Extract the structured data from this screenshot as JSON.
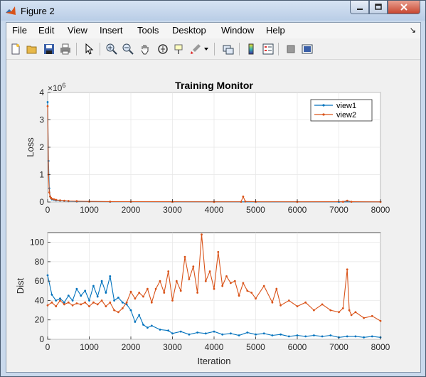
{
  "window": {
    "title": "Figure 2"
  },
  "menu": {
    "file": "File",
    "edit": "Edit",
    "view": "View",
    "insert": "Insert",
    "tools": "Tools",
    "desktop": "Desktop",
    "window": "Window",
    "help": "Help"
  },
  "toolbar": {
    "icons": [
      "new-figure-icon",
      "open-icon",
      "save-icon",
      "print-icon",
      "pointer-icon",
      "zoom-in-icon",
      "zoom-out-icon",
      "pan-icon",
      "rotate-3d-icon",
      "data-cursor-icon",
      "brush-icon",
      "link-plot-icon",
      "colorbar-icon",
      "legend-icon",
      "hide-plot-tools-icon",
      "show-plot-tools-icon"
    ]
  },
  "chart_data": [
    {
      "type": "line",
      "title": "Training Monitor",
      "ylabel": "Loss",
      "xlabel": "",
      "exponent_label": "×10",
      "exponent_power": "6",
      "xlim": [
        0,
        8000
      ],
      "ylim": [
        0,
        4
      ],
      "xticks": [
        "0",
        "1000",
        "2000",
        "3000",
        "4000",
        "5000",
        "6000",
        "7000",
        "8000"
      ],
      "yticks": [
        "0",
        "1",
        "2",
        "3",
        "4"
      ],
      "legend": {
        "placement": "top-right",
        "entries": [
          "view1",
          "view2"
        ]
      },
      "grid": true,
      "series": [
        {
          "name": "view1",
          "color": "#0072bd",
          "x": [
            0,
            20,
            40,
            60,
            80,
            100,
            150,
            200,
            300,
            400,
            500,
            700,
            1000,
            1500,
            2000,
            3000,
            4000,
            5000,
            6000,
            7000,
            8000
          ],
          "y": [
            3.65,
            1.5,
            0.5,
            0.2,
            0.14,
            0.1,
            0.08,
            0.06,
            0.05,
            0.04,
            0.03,
            0.02,
            0.015,
            0.01,
            0.01,
            0.008,
            0.007,
            0.006,
            0.005,
            0.005,
            0.004
          ]
        },
        {
          "name": "view2",
          "color": "#d95319",
          "x": [
            0,
            20,
            40,
            60,
            80,
            100,
            150,
            200,
            300,
            400,
            500,
            700,
            1000,
            1500,
            2000,
            3000,
            4000,
            4650,
            4700,
            4750,
            5000,
            6000,
            7100,
            7200,
            7300,
            8000
          ],
          "y": [
            3.5,
            1.0,
            0.35,
            0.2,
            0.15,
            0.12,
            0.1,
            0.08,
            0.06,
            0.05,
            0.04,
            0.03,
            0.02,
            0.015,
            0.012,
            0.01,
            0.008,
            0.01,
            0.2,
            0.02,
            0.01,
            0.008,
            0.01,
            0.05,
            0.01,
            0.006
          ]
        }
      ]
    },
    {
      "type": "line",
      "title": "",
      "ylabel": "Dist",
      "xlabel": "Iteration",
      "xlim": [
        0,
        8000
      ],
      "ylim": [
        0,
        110
      ],
      "xticks": [
        "0",
        "1000",
        "2000",
        "3000",
        "4000",
        "5000",
        "6000",
        "7000",
        "8000"
      ],
      "yticks": [
        "0",
        "20",
        "40",
        "60",
        "80",
        "100"
      ],
      "grid": true,
      "series": [
        {
          "name": "view1",
          "color": "#0072bd",
          "x": [
            0,
            100,
            200,
            300,
            400,
            500,
            600,
            700,
            800,
            900,
            1000,
            1100,
            1200,
            1300,
            1400,
            1500,
            1600,
            1700,
            1800,
            1900,
            2000,
            2100,
            2200,
            2300,
            2400,
            2500,
            2700,
            2900,
            3000,
            3200,
            3400,
            3600,
            3800,
            4000,
            4200,
            4400,
            4600,
            4800,
            5000,
            5200,
            5400,
            5600,
            5800,
            6000,
            6200,
            6400,
            6600,
            6800,
            7000,
            7200,
            7400,
            7600,
            7800,
            8000
          ],
          "y": [
            66,
            46,
            40,
            42,
            38,
            45,
            40,
            52,
            45,
            50,
            40,
            55,
            44,
            60,
            48,
            65,
            40,
            43,
            38,
            36,
            30,
            18,
            25,
            15,
            12,
            14,
            10,
            9,
            6,
            8,
            5,
            7,
            6,
            8,
            5,
            6,
            4,
            7,
            5,
            6,
            4,
            5,
            3,
            4,
            3,
            4,
            3,
            4,
            2,
            3,
            3,
            2,
            3,
            2
          ]
        },
        {
          "name": "view2",
          "color": "#d95319",
          "x": [
            0,
            100,
            200,
            300,
            400,
            500,
            600,
            700,
            800,
            900,
            1000,
            1100,
            1200,
            1300,
            1400,
            1500,
            1600,
            1700,
            1800,
            1900,
            2000,
            2100,
            2200,
            2300,
            2400,
            2500,
            2600,
            2700,
            2800,
            2900,
            3000,
            3100,
            3200,
            3300,
            3400,
            3500,
            3600,
            3700,
            3800,
            3900,
            4000,
            4100,
            4200,
            4300,
            4400,
            4500,
            4600,
            4700,
            4800,
            4900,
            5000,
            5200,
            5400,
            5500,
            5600,
            5800,
            6000,
            6200,
            6400,
            6600,
            6800,
            7000,
            7100,
            7200,
            7250,
            7300,
            7400,
            7600,
            7800,
            8000
          ],
          "y": [
            35,
            38,
            34,
            40,
            36,
            38,
            35,
            37,
            36,
            38,
            34,
            38,
            36,
            40,
            34,
            38,
            30,
            28,
            32,
            38,
            49,
            42,
            48,
            44,
            52,
            38,
            52,
            60,
            48,
            70,
            40,
            60,
            50,
            85,
            62,
            75,
            48,
            108,
            60,
            70,
            52,
            90,
            55,
            65,
            58,
            60,
            45,
            58,
            50,
            48,
            42,
            55,
            38,
            52,
            35,
            40,
            34,
            38,
            30,
            36,
            30,
            28,
            32,
            72,
            30,
            25,
            28,
            22,
            24,
            19
          ]
        }
      ]
    }
  ]
}
